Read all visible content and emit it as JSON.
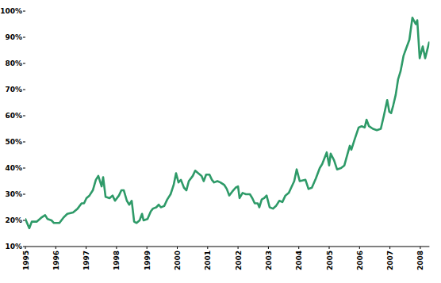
{
  "chart_data": {
    "type": "line",
    "color": "#2e9a68",
    "grid": false,
    "xlim": [
      1995,
      2008.3
    ],
    "xticks": [
      1995,
      1996,
      1997,
      1998,
      1999,
      2000,
      2001,
      2002,
      2003,
      2004,
      2005,
      2006,
      2007,
      2008
    ],
    "ylim": [
      10,
      100
    ],
    "yticks": [
      {
        "value": 10,
        "label": "10%"
      },
      {
        "value": 20,
        "label": "20%"
      },
      {
        "value": 30,
        "label": "30%"
      },
      {
        "value": 40,
        "label": "40%"
      },
      {
        "value": 50,
        "label": "50%"
      },
      {
        "value": 60,
        "label": "60%"
      },
      {
        "value": 70,
        "label": "70%"
      },
      {
        "value": 80,
        "label": "80%"
      },
      {
        "value": 90,
        "label": "90%"
      },
      {
        "value": 100,
        "label": "100%"
      }
    ],
    "x": [
      1995.0,
      1995.13,
      1995.21,
      1995.37,
      1995.52,
      1995.65,
      1995.73,
      1995.86,
      1995.94,
      1996.12,
      1996.25,
      1996.38,
      1996.57,
      1996.72,
      1996.85,
      1996.93,
      1997.01,
      1997.11,
      1997.22,
      1997.32,
      1997.4,
      1997.51,
      1997.56,
      1997.64,
      1997.77,
      1997.87,
      1997.95,
      1998.08,
      1998.16,
      1998.24,
      1998.34,
      1998.42,
      1998.5,
      1998.58,
      1998.66,
      1998.76,
      1998.84,
      1998.89,
      1999.02,
      1999.13,
      1999.2,
      1999.31,
      1999.39,
      1999.46,
      1999.57,
      1999.67,
      1999.78,
      1999.88,
      1999.96,
      2000.04,
      2000.12,
      2000.22,
      2000.3,
      2000.38,
      2000.51,
      2000.59,
      2000.69,
      2000.8,
      2000.87,
      2000.95,
      2001.06,
      2001.14,
      2001.21,
      2001.32,
      2001.42,
      2001.55,
      2001.63,
      2001.71,
      2001.81,
      2001.92,
      2002.0,
      2002.05,
      2002.15,
      2002.26,
      2002.39,
      2002.47,
      2002.55,
      2002.65,
      2002.7,
      2002.78,
      2002.86,
      2002.94,
      2003.04,
      2003.15,
      2003.25,
      2003.36,
      2003.46,
      2003.56,
      2003.67,
      2003.75,
      2003.85,
      2003.93,
      2004.03,
      2004.22,
      2004.32,
      2004.43,
      2004.56,
      2004.69,
      2004.77,
      2004.92,
      2005.0,
      2005.05,
      2005.16,
      2005.26,
      2005.39,
      2005.5,
      2005.57,
      2005.68,
      2005.73,
      2005.84,
      2005.97,
      2006.07,
      2006.17,
      2006.23,
      2006.31,
      2006.44,
      2006.57,
      2006.7,
      2006.8,
      2006.91,
      2006.98,
      2007.04,
      2007.11,
      2007.19,
      2007.27,
      2007.35,
      2007.45,
      2007.56,
      2007.64,
      2007.74,
      2007.85,
      2007.9,
      2007.98,
      2008.08,
      2008.16,
      2008.29
    ],
    "values": [
      20.5,
      17,
      19.5,
      19.5,
      21,
      22,
      20.5,
      20,
      19,
      19,
      21,
      22.5,
      23,
      24.5,
      26.5,
      26.5,
      28.5,
      29.5,
      31.5,
      35.5,
      37,
      33,
      36.5,
      29,
      28.5,
      29.5,
      27.5,
      29.5,
      31.5,
      31.5,
      27.5,
      26,
      27.5,
      19.5,
      19,
      20,
      22.5,
      20,
      20.5,
      23.5,
      24.5,
      25,
      26,
      25,
      25.5,
      28,
      30,
      33.5,
      38,
      34.5,
      35.5,
      32.5,
      31.5,
      35,
      37,
      39,
      38,
      37,
      35,
      37.5,
      37.5,
      35.5,
      34.5,
      35,
      34.5,
      33.5,
      32,
      29.5,
      31,
      32.5,
      33,
      28.5,
      30.5,
      30,
      30,
      28.5,
      26.5,
      26.5,
      25,
      28,
      28.5,
      29.5,
      25,
      24.5,
      25.5,
      27.5,
      27,
      29.5,
      30.5,
      32.5,
      35,
      39.5,
      35,
      35.5,
      32,
      32.5,
      36,
      40,
      41.5,
      46,
      41,
      45.5,
      43,
      39.5,
      40,
      41,
      44,
      48.5,
      47,
      51,
      55.5,
      56,
      55.5,
      58.5,
      56,
      55,
      54.5,
      55,
      60,
      66,
      61.5,
      61,
      64,
      68,
      74,
      77,
      83,
      86.5,
      89,
      97.5,
      95,
      96.5,
      82,
      86.5,
      82,
      88
    ]
  }
}
